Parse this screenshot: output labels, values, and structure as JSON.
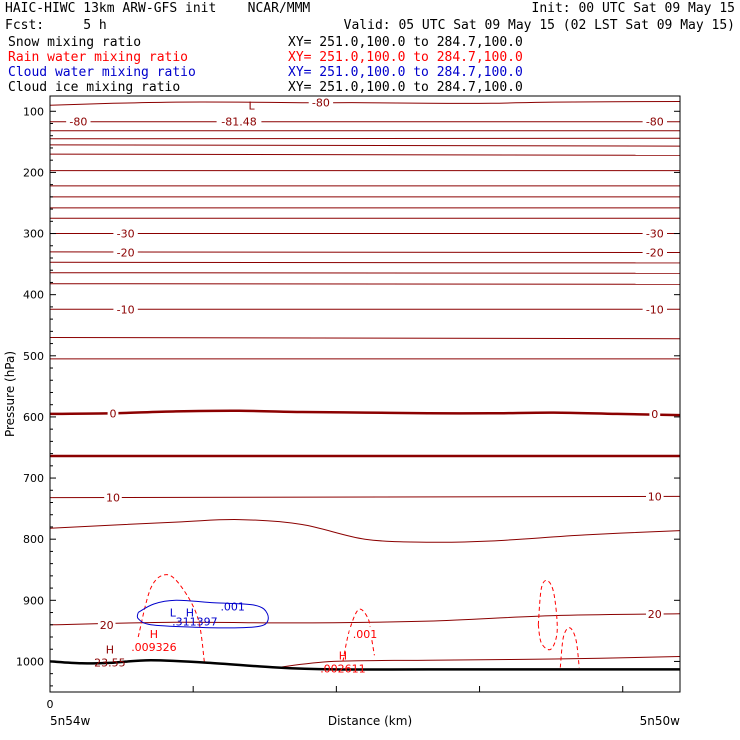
{
  "header": {
    "title": "HAIC-HIWC 13km ARW-GFS init",
    "org": "NCAR/MMM",
    "init": "Init: 00 UTC Sat 09 May 15",
    "fcst_label": "Fcst:",
    "fcst_value": "5 h",
    "valid": "Valid: 05 UTC Sat 09 May 15 (02 LST Sat 09 May 15)"
  },
  "legend": [
    {
      "label": "Snow mixing ratio",
      "xy": "XY= 251.0,100.0 to 284.7,100.0",
      "color": "#000000"
    },
    {
      "label": "Rain water mixing ratio",
      "xy": "XY= 251.0,100.0 to 284.7,100.0",
      "color": "#ff0000"
    },
    {
      "label": "Cloud water mixing ratio",
      "xy": "XY= 251.0,100.0 to 284.7,100.0",
      "color": "#0000cc"
    },
    {
      "label": "Cloud ice mixing ratio",
      "xy": "XY= 251.0,100.0 to 284.7,100.0",
      "color": "#000000"
    }
  ],
  "chart_data": {
    "type": "line",
    "description_type": "vertical cross-section contour plot",
    "ylabel": "Pressure (hPa)",
    "xlabel": "Distance (km)",
    "x_left_label": "5n54w",
    "x_right_label": "5n50w",
    "x_zero_label": "0",
    "ylim": [
      1050,
      75
    ],
    "yticks": [
      100,
      200,
      300,
      400,
      500,
      600,
      700,
      800,
      900,
      1000
    ],
    "colors": {
      "temperature": "#8b0000",
      "rain": "#ff0000",
      "cloud_water": "#0000cc",
      "terrain": "#000000"
    },
    "temperature_contours": [
      {
        "value": -80,
        "points": [
          [
            0,
            90
          ],
          [
            100,
            87
          ],
          [
            200,
            85
          ],
          [
            300,
            85
          ],
          [
            400,
            86
          ],
          [
            500,
            86
          ],
          [
            600,
            87
          ],
          [
            700,
            87
          ],
          [
            800,
            85
          ],
          [
            1000,
            84
          ]
        ]
      },
      {
        "value": -80,
        "points": [
          [
            0,
            117
          ],
          [
            1000,
            117
          ]
        ]
      },
      {
        "value": -70,
        "points": [
          [
            0,
            132
          ],
          [
            1000,
            132
          ]
        ]
      },
      {
        "value": -70,
        "points": [
          [
            0,
            145
          ],
          [
            1000,
            144
          ]
        ]
      },
      {
        "value": -60,
        "points": [
          [
            0,
            155
          ],
          [
            1000,
            157
          ]
        ]
      },
      {
        "value": -60,
        "points": [
          [
            0,
            170
          ],
          [
            1000,
            172
          ]
        ]
      },
      {
        "value": -50,
        "points": [
          [
            0,
            197
          ],
          [
            1000,
            197
          ]
        ]
      },
      {
        "value": -50,
        "points": [
          [
            0,
            222
          ],
          [
            1000,
            222
          ]
        ]
      },
      {
        "value": -40,
        "points": [
          [
            0,
            240
          ],
          [
            1000,
            240
          ]
        ]
      },
      {
        "value": -40,
        "points": [
          [
            0,
            258
          ],
          [
            1000,
            258
          ]
        ]
      },
      {
        "value": -40,
        "points": [
          [
            0,
            275
          ],
          [
            1000,
            275
          ]
        ]
      },
      {
        "value": -30,
        "points": [
          [
            0,
            300
          ],
          [
            1000,
            300
          ]
        ]
      },
      {
        "value": -20,
        "points": [
          [
            0,
            330
          ],
          [
            1000,
            331
          ]
        ]
      },
      {
        "value": -20,
        "points": [
          [
            0,
            347
          ],
          [
            1000,
            348
          ]
        ]
      },
      {
        "value": -20,
        "points": [
          [
            0,
            364
          ],
          [
            1000,
            365
          ]
        ]
      },
      {
        "value": -20,
        "points": [
          [
            0,
            382
          ],
          [
            1000,
            383
          ]
        ]
      },
      {
        "value": -10,
        "points": [
          [
            0,
            424
          ],
          [
            1000,
            424
          ]
        ]
      },
      {
        "value": -10,
        "points": [
          [
            0,
            470
          ],
          [
            1000,
            472
          ]
        ]
      },
      {
        "value": -10,
        "points": [
          [
            0,
            505
          ],
          [
            1000,
            505
          ]
        ]
      },
      {
        "value": 0,
        "points": [
          [
            0,
            595
          ],
          [
            100,
            594
          ],
          [
            200,
            591
          ],
          [
            300,
            590
          ],
          [
            400,
            592
          ],
          [
            500,
            593
          ],
          [
            600,
            594
          ],
          [
            700,
            594
          ],
          [
            800,
            593
          ],
          [
            900,
            595
          ],
          [
            1000,
            597
          ]
        ]
      },
      {
        "value": 0,
        "points": [
          [
            0,
            664
          ],
          [
            1000,
            664
          ]
        ]
      },
      {
        "value": 10,
        "points": [
          [
            0,
            732
          ],
          [
            1000,
            730
          ]
        ]
      },
      {
        "value": 10,
        "points": [
          [
            0,
            782
          ],
          [
            200,
            772
          ],
          [
            300,
            768
          ],
          [
            400,
            776
          ],
          [
            500,
            800
          ],
          [
            600,
            805
          ],
          [
            700,
            803
          ],
          [
            850,
            793
          ],
          [
            1000,
            786
          ]
        ]
      },
      {
        "value": 20,
        "points": [
          [
            0,
            940
          ],
          [
            200,
            936
          ],
          [
            400,
            937
          ],
          [
            600,
            934
          ],
          [
            800,
            925
          ],
          [
            1000,
            922
          ]
        ]
      },
      {
        "value": 20,
        "points": [
          [
            360,
            1010
          ],
          [
            450,
            1000
          ],
          [
            600,
            998
          ],
          [
            800,
            996
          ],
          [
            1000,
            992
          ]
        ]
      }
    ],
    "temperature_labels": [
      {
        "text": "-80",
        "x": 45,
        "p": 117
      },
      {
        "text": "-81.48",
        "x": 300,
        "p": 117
      },
      {
        "text": "-80",
        "x": 430,
        "p": 86
      },
      {
        "text": "-80",
        "x": 960,
        "p": 117
      },
      {
        "text": "-30",
        "x": 120,
        "p": 300
      },
      {
        "text": "-30",
        "x": 960,
        "p": 300
      },
      {
        "text": "-20",
        "x": 120,
        "p": 331
      },
      {
        "text": "-20",
        "x": 960,
        "p": 331
      },
      {
        "text": "-10",
        "x": 120,
        "p": 424
      },
      {
        "text": "-10",
        "x": 960,
        "p": 424
      },
      {
        "text": "0",
        "x": 100,
        "p": 594
      },
      {
        "text": "0",
        "x": 960,
        "p": 595
      },
      {
        "text": "10",
        "x": 100,
        "p": 732
      },
      {
        "text": "10",
        "x": 960,
        "p": 730
      },
      {
        "text": "20",
        "x": 90,
        "p": 940
      },
      {
        "text": "20",
        "x": 960,
        "p": 922
      }
    ],
    "extrema": [
      {
        "sym": "L",
        "value": "",
        "x": 320,
        "p": 100
      },
      {
        "sym": "H",
        "value": "23.55",
        "x": 95,
        "p": 990
      },
      {
        "sym": "H",
        "value": ".009326",
        "x": 165,
        "p": 965
      },
      {
        "sym": "H",
        "value": ".002611",
        "x": 465,
        "p": 1000
      }
    ],
    "rain_contours": [
      {
        "value": 0.001,
        "points": [
          [
            140,
            960
          ],
          [
            160,
            880
          ],
          [
            185,
            858
          ],
          [
            210,
            880
          ],
          [
            235,
            930
          ],
          [
            245,
            1000
          ]
        ]
      },
      {
        "value": 0.001,
        "points": [
          [
            465,
            1000
          ],
          [
            475,
            950
          ],
          [
            490,
            915
          ],
          [
            505,
            930
          ],
          [
            510,
            960
          ],
          [
            515,
            990
          ]
        ]
      },
      {
        "value": 0.001,
        "points": [
          [
            775,
            940
          ],
          [
            780,
            880
          ],
          [
            790,
            868
          ],
          [
            800,
            890
          ],
          [
            805,
            950
          ],
          [
            795,
            980
          ],
          [
            780,
            970
          ],
          [
            775,
            940
          ]
        ]
      },
      {
        "value": 0.001,
        "points": [
          [
            810,
            1010
          ],
          [
            815,
            960
          ],
          [
            825,
            945
          ],
          [
            835,
            965
          ],
          [
            840,
            1010
          ]
        ]
      }
    ],
    "rain_labels": [
      {
        "text": ".001",
        "x": 500,
        "p": 955
      }
    ],
    "cloudwater_contours": [
      {
        "value": 0.001,
        "points": [
          [
            140,
            920
          ],
          [
            165,
            906
          ],
          [
            200,
            900
          ],
          [
            260,
            904
          ],
          [
            325,
            908
          ],
          [
            345,
            922
          ],
          [
            340,
            940
          ],
          [
            300,
            945
          ],
          [
            230,
            944
          ],
          [
            160,
            940
          ],
          [
            140,
            930
          ],
          [
            140,
            920
          ]
        ]
      }
    ],
    "cloudwater_labels": [
      {
        "text": "L",
        "x": 195,
        "p": 920
      },
      {
        "text": "H",
        "x": 222,
        "p": 920
      },
      {
        "text": ".311397",
        "x": 230,
        "p": 935
      },
      {
        "text": ".001",
        "x": 290,
        "p": 910
      }
    ],
    "terrain": [
      [
        0,
        1000
      ],
      [
        50,
        1003
      ],
      [
        100,
        1002
      ],
      [
        160,
        998
      ],
      [
        250,
        1002
      ],
      [
        360,
        1010
      ],
      [
        450,
        1013
      ],
      [
        600,
        1013
      ],
      [
        800,
        1013
      ],
      [
        1000,
        1013
      ]
    ]
  }
}
